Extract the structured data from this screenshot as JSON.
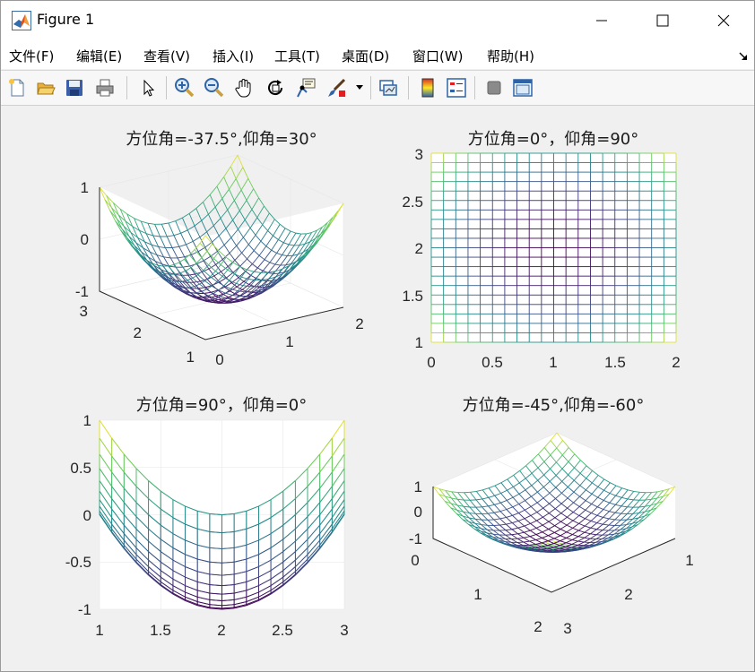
{
  "window": {
    "title": "Figure 1"
  },
  "menu": {
    "items": [
      "文件(F)",
      "编辑(E)",
      "查看(V)",
      "插入(I)",
      "工具(T)",
      "桌面(D)",
      "窗口(W)",
      "帮助(H)"
    ]
  },
  "toolbar": {
    "icons": [
      "new-figure-icon",
      "open-file-icon",
      "save-icon",
      "print-icon",
      "pointer-icon",
      "zoom-in-icon",
      "zoom-out-icon",
      "pan-hand-icon",
      "rotate-3d-icon",
      "data-cursor-icon",
      "brush-icon",
      "brush-dropdown-icon",
      "link-plot-icon",
      "insert-colorbar-icon",
      "insert-legend-icon",
      "hide-plot-tools-icon",
      "show-plot-tools-icon"
    ]
  },
  "colormap": [
    "#440154",
    "#3b528b",
    "#21918c",
    "#5ec962",
    "#fde725"
  ],
  "subplots": [
    {
      "title": "方位角=-37.5°,仰角=30°",
      "ticks": {
        "z": [
          "1",
          "0",
          "-1"
        ],
        "y": [
          "3",
          "2",
          "1"
        ],
        "x": [
          "0",
          "1",
          "2"
        ]
      }
    },
    {
      "title": "方位角=0°，仰角=90°",
      "ticks": {
        "y": [
          "3",
          "2.5",
          "2",
          "1.5",
          "1"
        ],
        "x": [
          "0",
          "0.5",
          "1",
          "1.5",
          "2"
        ]
      }
    },
    {
      "title": "方位角=90°，仰角=0°",
      "ticks": {
        "y": [
          "1",
          "0.5",
          "0",
          "-0.5",
          "-1"
        ],
        "x": [
          "1",
          "1.5",
          "2",
          "2.5",
          "3"
        ]
      }
    },
    {
      "title": "方位角=-45°,仰角=-60°",
      "ticks": {
        "z": [
          "1",
          "0",
          "-1"
        ],
        "x": [
          "0",
          "1",
          "2"
        ],
        "y": [
          "1",
          "2",
          "3"
        ]
      }
    }
  ]
}
